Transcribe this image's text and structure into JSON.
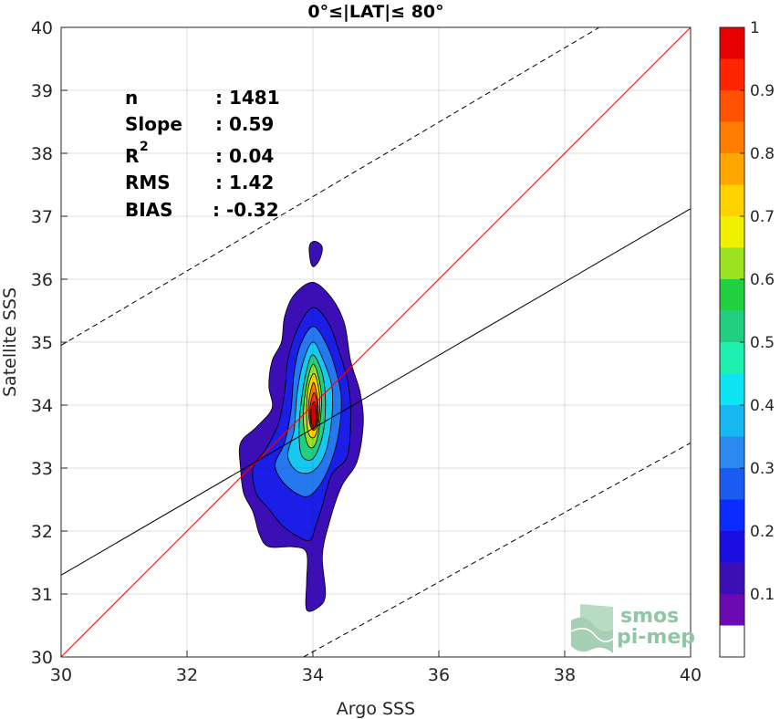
{
  "chart_data": {
    "type": "heatmap",
    "subtype": "density-contour-scatter",
    "title": "0°≤|LAT|≤ 80°",
    "xlabel": "Argo SSS",
    "ylabel": "Satellite SSS",
    "xlim": [
      30,
      40
    ],
    "ylim": [
      30,
      40
    ],
    "xticks": [
      "30",
      "32",
      "34",
      "36",
      "38",
      "40"
    ],
    "yticks": [
      "30",
      "31",
      "32",
      "33",
      "34",
      "35",
      "36",
      "37",
      "38",
      "39",
      "40"
    ],
    "grid": true,
    "stats": {
      "n_label": "n",
      "n_value": ": 1481",
      "slope_label": "Slope",
      "slope_value": ": 0.59",
      "r2_label": "R",
      "r2_sup": "2",
      "r2_value": ": 0.04",
      "rms_label": "RMS",
      "rms_value": ": 1.42",
      "bias_label": "BIAS",
      "bias_value": ": -0.32"
    },
    "lines": [
      {
        "name": "1:1",
        "color": "#ff0000",
        "style": "solid",
        "points": [
          [
            30,
            30
          ],
          [
            40,
            40
          ]
        ]
      },
      {
        "name": "fit",
        "color": "#000000",
        "style": "solid",
        "points": [
          [
            30,
            31.3
          ],
          [
            40,
            37.12
          ]
        ]
      },
      {
        "name": "upper bound",
        "color": "#000000",
        "style": "dashed",
        "points": [
          [
            30,
            34.95
          ],
          [
            38.55,
            40
          ]
        ]
      },
      {
        "name": "lower bound",
        "color": "#000000",
        "style": "dashed",
        "points": [
          [
            33.85,
            30
          ],
          [
            40,
            33.4
          ]
        ]
      }
    ],
    "density_contours": [
      {
        "level": 0.05,
        "color": "#3b0fb5",
        "points": [
          [
            34.05,
            36.6
          ],
          [
            34.15,
            36.5
          ],
          [
            34.1,
            36.3
          ],
          [
            34.0,
            36.2
          ],
          [
            33.95,
            36.35
          ],
          [
            33.95,
            36.55
          ]
        ]
      },
      {
        "level": 0.05,
        "color": "#3b0fb5",
        "points": [
          [
            34.0,
            35.95
          ],
          [
            34.3,
            35.7
          ],
          [
            34.5,
            35.3
          ],
          [
            34.6,
            34.7
          ],
          [
            34.75,
            34.2
          ],
          [
            34.8,
            33.7
          ],
          [
            34.7,
            33.1
          ],
          [
            34.45,
            32.7
          ],
          [
            34.25,
            32.1
          ],
          [
            34.15,
            31.6
          ],
          [
            34.2,
            31.0
          ],
          [
            34.1,
            30.8
          ],
          [
            33.9,
            30.75
          ],
          [
            33.9,
            31.2
          ],
          [
            33.9,
            31.65
          ],
          [
            33.7,
            31.75
          ],
          [
            33.3,
            31.75
          ],
          [
            33.15,
            31.95
          ],
          [
            33.05,
            32.3
          ],
          [
            32.9,
            32.6
          ],
          [
            32.85,
            33.0
          ],
          [
            32.85,
            33.4
          ],
          [
            33.1,
            33.65
          ],
          [
            33.35,
            33.95
          ],
          [
            33.3,
            34.3
          ],
          [
            33.35,
            34.7
          ],
          [
            33.5,
            35.0
          ],
          [
            33.55,
            35.4
          ],
          [
            33.7,
            35.75
          ]
        ]
      },
      {
        "level": 0.15,
        "color": "#1a1ee6",
        "points": [
          [
            34.0,
            35.55
          ],
          [
            34.25,
            35.3
          ],
          [
            34.4,
            34.9
          ],
          [
            34.55,
            34.4
          ],
          [
            34.6,
            33.9
          ],
          [
            34.55,
            33.2
          ],
          [
            34.3,
            32.9
          ],
          [
            34.15,
            32.4
          ],
          [
            34.05,
            32.1
          ],
          [
            33.95,
            31.85
          ],
          [
            33.7,
            31.95
          ],
          [
            33.5,
            32.1
          ],
          [
            33.3,
            32.35
          ],
          [
            33.1,
            32.6
          ],
          [
            33.05,
            33.0
          ],
          [
            33.25,
            33.3
          ],
          [
            33.45,
            33.7
          ],
          [
            33.55,
            34.2
          ],
          [
            33.6,
            34.7
          ],
          [
            33.75,
            35.2
          ]
        ]
      },
      {
        "level": 0.25,
        "color": "#2578f0",
        "points": [
          [
            34.0,
            35.25
          ],
          [
            34.2,
            35.0
          ],
          [
            34.35,
            34.6
          ],
          [
            34.45,
            34.1
          ],
          [
            34.4,
            33.5
          ],
          [
            34.25,
            33.0
          ],
          [
            34.05,
            32.65
          ],
          [
            33.85,
            32.55
          ],
          [
            33.55,
            32.75
          ],
          [
            33.4,
            33.05
          ],
          [
            33.55,
            33.4
          ],
          [
            33.65,
            33.9
          ],
          [
            33.7,
            34.5
          ],
          [
            33.8,
            34.95
          ]
        ]
      },
      {
        "level": 0.35,
        "color": "#19c8f0",
        "points": [
          [
            34.0,
            35.0
          ],
          [
            34.15,
            34.75
          ],
          [
            34.3,
            34.3
          ],
          [
            34.3,
            33.8
          ],
          [
            34.2,
            33.25
          ],
          [
            34.0,
            32.95
          ],
          [
            33.75,
            32.95
          ],
          [
            33.6,
            33.2
          ],
          [
            33.7,
            33.6
          ],
          [
            33.75,
            34.2
          ],
          [
            33.85,
            34.7
          ]
        ]
      },
      {
        "level": 0.45,
        "color": "#20d080",
        "points": [
          [
            34.0,
            34.8
          ],
          [
            34.15,
            34.5
          ],
          [
            34.2,
            34.0
          ],
          [
            34.15,
            33.5
          ],
          [
            34.0,
            33.15
          ],
          [
            33.82,
            33.2
          ],
          [
            33.78,
            33.6
          ],
          [
            33.82,
            34.1
          ],
          [
            33.9,
            34.55
          ]
        ]
      },
      {
        "level": 0.55,
        "color": "#9be320",
        "points": [
          [
            34.0,
            34.65
          ],
          [
            34.12,
            34.3
          ],
          [
            34.13,
            33.9
          ],
          [
            34.05,
            33.4
          ],
          [
            33.93,
            33.35
          ],
          [
            33.85,
            33.7
          ],
          [
            33.88,
            34.2
          ]
        ]
      },
      {
        "level": 0.65,
        "color": "#ffd200",
        "points": [
          [
            34.02,
            34.5
          ],
          [
            34.1,
            34.2
          ],
          [
            34.1,
            33.8
          ],
          [
            34.03,
            33.5
          ],
          [
            33.93,
            33.55
          ],
          [
            33.9,
            33.9
          ],
          [
            33.93,
            34.3
          ]
        ]
      },
      {
        "level": 0.75,
        "color": "#ff7d00",
        "points": [
          [
            34.02,
            34.35
          ],
          [
            34.08,
            34.05
          ],
          [
            34.08,
            33.75
          ],
          [
            34.02,
            33.6
          ],
          [
            33.95,
            33.7
          ],
          [
            33.93,
            34.0
          ],
          [
            33.97,
            34.25
          ]
        ]
      },
      {
        "level": 0.85,
        "color": "#ff3a00",
        "points": [
          [
            34.02,
            34.2
          ],
          [
            34.07,
            34.0
          ],
          [
            34.06,
            33.72
          ],
          [
            34.0,
            33.62
          ],
          [
            33.96,
            33.75
          ],
          [
            33.96,
            34.0
          ]
        ]
      },
      {
        "level": 0.93,
        "color": "#d40000",
        "points": [
          [
            34.03,
            34.05
          ],
          [
            34.06,
            33.85
          ],
          [
            34.04,
            33.68
          ],
          [
            34.0,
            33.66
          ],
          [
            33.97,
            33.8
          ],
          [
            33.98,
            33.98
          ]
        ]
      }
    ],
    "colorbar": {
      "ticks": [
        "0.1",
        "0.2",
        "0.3",
        "0.4",
        "0.5",
        "0.6",
        "0.7",
        "0.8",
        "0.9",
        "1"
      ],
      "tick_values": [
        0.1,
        0.2,
        0.3,
        0.4,
        0.5,
        0.6,
        0.7,
        0.8,
        0.9,
        1.0
      ],
      "levels": [
        0,
        0.05,
        0.1,
        0.15,
        0.2,
        0.25,
        0.3,
        0.35,
        0.4,
        0.45,
        0.5,
        0.55,
        0.6,
        0.65,
        0.7,
        0.75,
        0.8,
        0.85,
        0.9,
        0.95,
        1.0
      ],
      "colors": [
        "#ffffff",
        "#6a0ab0",
        "#3b0fb5",
        "#1a0fe0",
        "#0a2cff",
        "#1c5bf0",
        "#2a8af0",
        "#17b8f2",
        "#0de6f2",
        "#1ff0b0",
        "#20d080",
        "#20d040",
        "#9be320",
        "#f0f000",
        "#ffd200",
        "#ffa600",
        "#ff7d00",
        "#ff5200",
        "#ff2400",
        "#e60000",
        "#8b0000"
      ]
    },
    "logo": {
      "line1": "smos",
      "line2": "pi-mep"
    }
  }
}
